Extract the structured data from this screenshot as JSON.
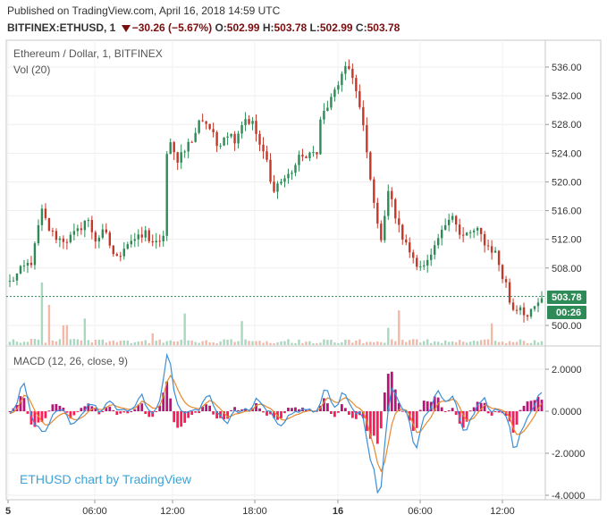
{
  "header": {
    "published": "Published on TradingView.com, April 16, 2018 14:59 UTC",
    "symbol": "BITFINEX:ETHUSD, 1",
    "change": "−30.26 (−5.67%)",
    "ohlc": {
      "o_label": "O:",
      "o": "502.99",
      "h_label": "H:",
      "h": "503.78",
      "l_label": "L:",
      "l": "502.99",
      "c_label": "C:",
      "c": "503.78"
    }
  },
  "legend": {
    "title": "Ethereum / Dollar, 1, BITFINEX",
    "volume": "Vol (20)",
    "macd": "MACD (12, 26, close, 9)"
  },
  "watermark": "ETHUSD chart by TradingView",
  "price_marker": {
    "value": "503.78",
    "timer": "00:26"
  },
  "colors": {
    "up": "#2e8b57",
    "down": "#c0392b",
    "macd_line": "#3d8fd6",
    "signal_line": "#e8892c",
    "hist_up": "#b8157a",
    "hist_down": "#ff1a5a",
    "vol_up": "#a8d8bf",
    "vol_down": "#f4b8a6",
    "price_line": "#2e8b57"
  },
  "chart_data": [
    {
      "type": "candlestick",
      "title": "Ethereum / Dollar, 1, BITFINEX",
      "ylim": [
        497,
        538
      ],
      "y_ticks": [
        "500.00",
        "508.00",
        "512.00",
        "516.00",
        "520.00",
        "524.00",
        "528.00",
        "532.00",
        "536.00"
      ],
      "x_ticks": [
        "5",
        "06:00",
        "12:00",
        "18:00",
        "16",
        "06:00",
        "12:00"
      ],
      "last_price": 503.78,
      "path": [
        [
          0,
          506
        ],
        [
          3,
          508
        ],
        [
          5,
          509
        ],
        [
          7,
          516
        ],
        [
          9,
          513
        ],
        [
          11,
          512
        ],
        [
          13,
          512
        ],
        [
          15,
          513
        ],
        [
          17,
          515
        ],
        [
          19,
          512
        ],
        [
          21,
          513
        ],
        [
          23,
          510
        ],
        [
          24,
          509
        ],
        [
          25,
          511
        ],
        [
          27,
          512
        ],
        [
          29,
          512
        ],
        [
          30,
          513
        ],
        [
          31,
          512
        ],
        [
          33,
          511
        ],
        [
          34,
          512
        ],
        [
          35,
          526
        ],
        [
          37,
          523
        ],
        [
          39,
          525
        ],
        [
          41,
          526
        ],
        [
          42,
          529
        ],
        [
          44,
          528
        ],
        [
          46,
          525
        ],
        [
          48,
          527
        ],
        [
          50,
          526
        ],
        [
          52,
          529
        ],
        [
          54,
          528
        ],
        [
          55,
          526
        ],
        [
          56,
          524
        ],
        [
          57,
          523
        ],
        [
          58,
          519
        ],
        [
          60,
          520
        ],
        [
          62,
          521
        ],
        [
          64,
          523
        ],
        [
          65,
          524
        ],
        [
          66,
          523
        ],
        [
          67,
          524
        ],
        [
          68,
          524
        ],
        [
          69,
          529
        ],
        [
          71,
          531
        ],
        [
          73,
          534
        ],
        [
          74,
          535
        ],
        [
          75,
          536
        ],
        [
          76,
          535
        ],
        [
          77,
          532
        ],
        [
          78,
          529
        ],
        [
          79,
          525
        ],
        [
          80,
          520
        ],
        [
          81,
          517
        ],
        [
          82,
          511
        ],
        [
          84,
          519
        ],
        [
          86,
          514
        ],
        [
          88,
          511
        ],
        [
          90,
          509
        ],
        [
          92,
          508
        ],
        [
          93,
          509
        ],
        [
          94,
          510
        ],
        [
          95,
          512
        ],
        [
          96,
          513
        ],
        [
          97,
          515
        ],
        [
          98,
          516
        ],
        [
          99,
          514
        ],
        [
          100,
          512
        ],
        [
          102,
          513
        ],
        [
          104,
          513
        ],
        [
          106,
          511
        ],
        [
          108,
          510
        ],
        [
          109,
          507
        ],
        [
          110,
          506
        ],
        [
          111,
          503
        ],
        [
          112,
          502
        ],
        [
          113,
          503
        ],
        [
          114,
          502
        ],
        [
          115,
          501
        ],
        [
          116,
          502
        ],
        [
          117,
          503
        ],
        [
          118,
          503.78
        ]
      ]
    },
    {
      "type": "histogram",
      "title": "Vol (20)",
      "description": "volume bars along bottom of price pane"
    },
    {
      "type": "line",
      "title": "MACD (12, 26, close, 9)",
      "ylim": [
        -4.2,
        2.8
      ],
      "y_ticks": [
        "2.0000",
        "0.0000",
        "-2.0000",
        "-4.0000"
      ],
      "spikes": [
        [
          3,
          1.3
        ],
        [
          6,
          -0.7
        ],
        [
          8,
          -0.9
        ],
        [
          14,
          -0.6
        ],
        [
          18,
          0.4
        ],
        [
          22,
          0.6
        ],
        [
          29,
          0.8
        ],
        [
          35,
          2.7
        ],
        [
          36,
          0.3
        ],
        [
          44,
          0.8
        ],
        [
          48,
          -0.5
        ],
        [
          55,
          0.6
        ],
        [
          60,
          -0.8
        ],
        [
          70,
          1.0
        ],
        [
          74,
          0.9
        ],
        [
          80,
          -2.0
        ],
        [
          82,
          -3.8
        ],
        [
          85,
          1.1
        ],
        [
          90,
          -1.7
        ],
        [
          95,
          1.0
        ],
        [
          98,
          0.7
        ],
        [
          101,
          -0.9
        ],
        [
          105,
          0.6
        ],
        [
          112,
          -1.9
        ],
        [
          114,
          -0.6
        ],
        [
          118,
          1.0
        ]
      ]
    }
  ]
}
